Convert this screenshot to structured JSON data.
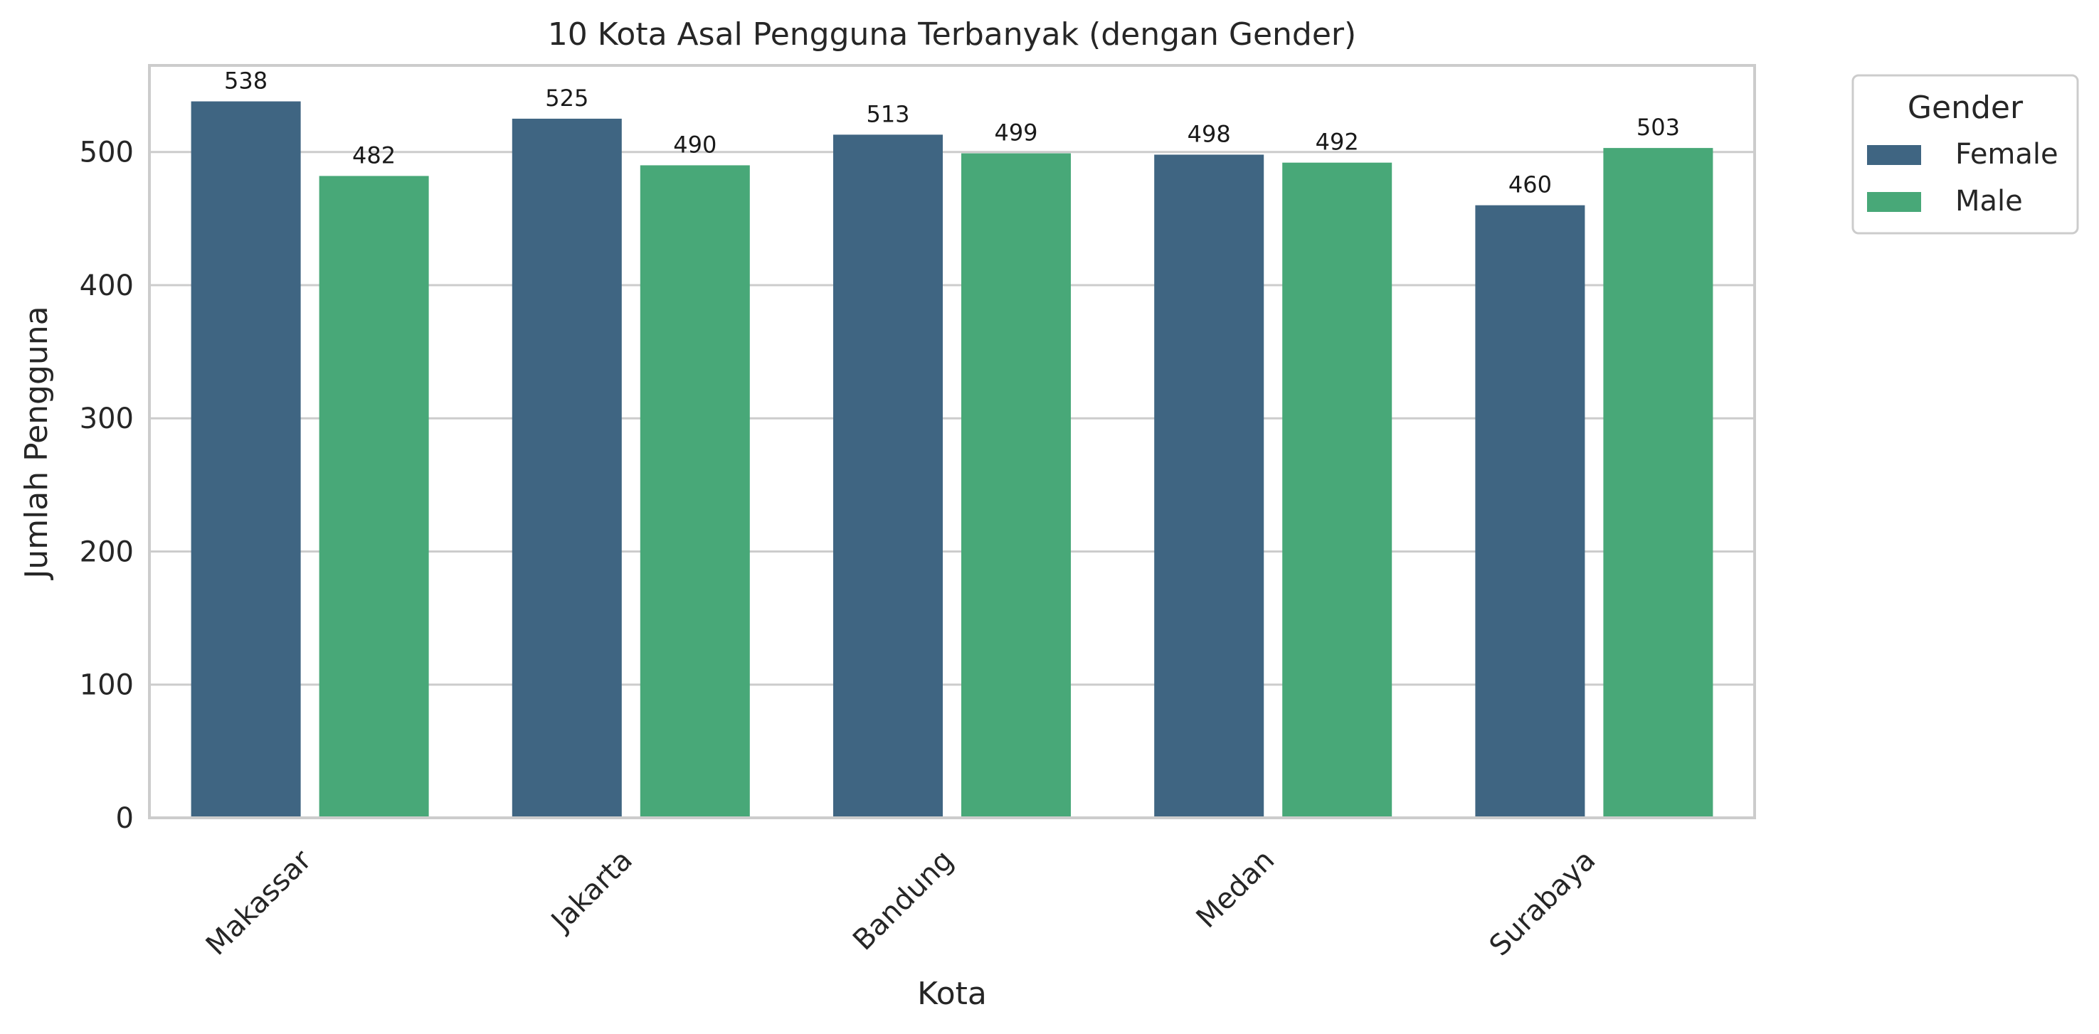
{
  "chart_data": {
    "type": "bar",
    "title": "10 Kota Asal Pengguna Terbanyak (dengan Gender)",
    "xlabel": "Kota",
    "ylabel": "Jumlah Pengguna",
    "categories": [
      "Makassar",
      "Jakarta",
      "Bandung",
      "Medan",
      "Surabaya"
    ],
    "series": [
      {
        "name": "Female",
        "color": "#3f6582",
        "values": [
          538,
          525,
          513,
          498,
          460
        ]
      },
      {
        "name": "Male",
        "color": "#48a878",
        "values": [
          482,
          490,
          499,
          492,
          503
        ]
      }
    ],
    "ylim": [
      0,
      565
    ],
    "yticks": [
      0,
      100,
      200,
      300,
      400,
      500
    ],
    "grid": "horizontal",
    "legend": {
      "title": "Gender",
      "placement": "outside-top-right"
    },
    "data_labels": true,
    "frame_color": "#cccccc",
    "grid_color": "#cccccc"
  }
}
